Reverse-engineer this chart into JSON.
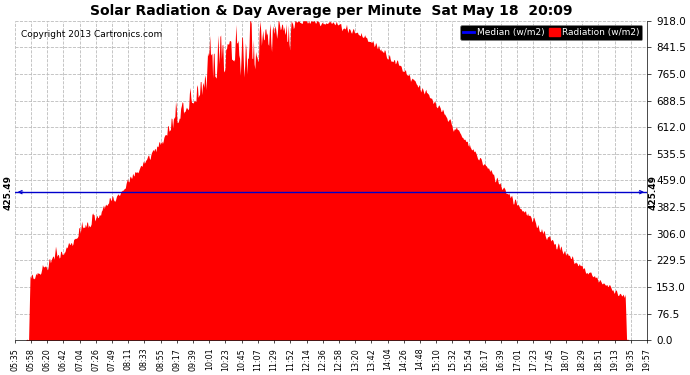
{
  "title": "Solar Radiation & Day Average per Minute  Sat May 18  20:09",
  "copyright": "Copyright 2013 Cartronics.com",
  "legend_median": "Median (w/m2)",
  "legend_radiation": "Radiation (w/m2)",
  "median_value": 425.49,
  "ymax": 918.0,
  "yticks": [
    0.0,
    76.5,
    153.0,
    229.5,
    306.0,
    382.5,
    459.0,
    535.5,
    612.0,
    688.5,
    765.0,
    841.5,
    918.0
  ],
  "background_color": "#ffffff",
  "fill_color": "#ff0000",
  "line_color": "#0000cc",
  "grid_color": "#bbbbbb",
  "title_color": "#000000",
  "copyright_color": "#000000",
  "xtick_labels": [
    "05:35",
    "05:58",
    "06:20",
    "06:42",
    "07:04",
    "07:26",
    "07:49",
    "08:11",
    "08:33",
    "08:55",
    "09:17",
    "09:39",
    "10:01",
    "10:23",
    "10:45",
    "11:07",
    "11:29",
    "11:52",
    "12:14",
    "12:36",
    "12:58",
    "13:20",
    "13:42",
    "14:04",
    "14:26",
    "14:48",
    "15:10",
    "15:32",
    "15:54",
    "16:17",
    "16:39",
    "17:01",
    "17:23",
    "17:45",
    "18:07",
    "18:29",
    "18:51",
    "19:13",
    "19:35",
    "19:57"
  ],
  "num_points": 870
}
